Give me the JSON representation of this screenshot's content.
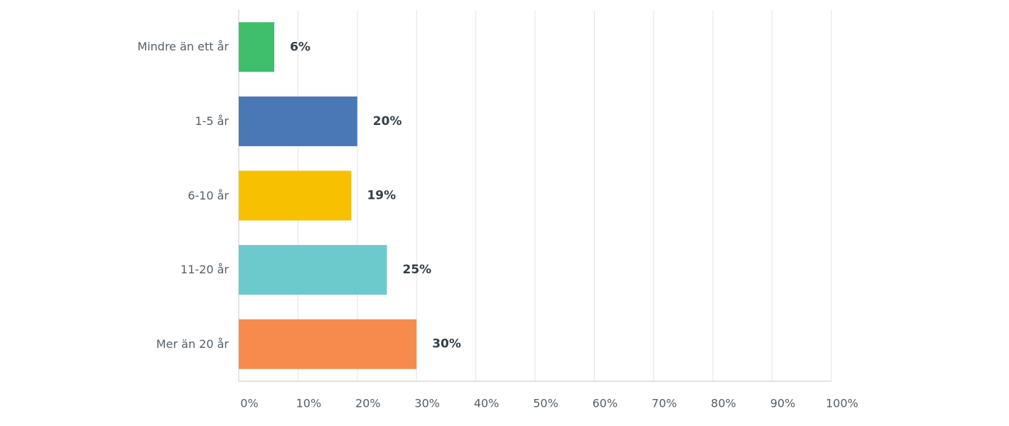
{
  "chart_data": {
    "type": "hbar",
    "categories": [
      "Mindre än ett år",
      "1-5 år",
      "6-10 år",
      "11-20 år",
      "Mer än 20 år"
    ],
    "values": [
      6,
      20,
      19,
      25,
      30
    ],
    "value_labels": [
      "6%",
      "20%",
      "19%",
      "25%",
      "30%"
    ],
    "colors": [
      "#3fbf6b",
      "#4a78b5",
      "#f7c000",
      "#6cc9cc",
      "#f68b4e"
    ],
    "xlim": [
      0,
      100
    ],
    "xticks": [
      {
        "value": 0,
        "label": "0%"
      },
      {
        "value": 10,
        "label": "10%"
      },
      {
        "value": 20,
        "label": "20%"
      },
      {
        "value": 30,
        "label": "30%"
      },
      {
        "value": 40,
        "label": "40%"
      },
      {
        "value": 50,
        "label": "50%"
      },
      {
        "value": 60,
        "label": "60%"
      },
      {
        "value": 70,
        "label": "70%"
      },
      {
        "value": 80,
        "label": "80%"
      },
      {
        "value": 90,
        "label": "90%"
      },
      {
        "value": 100,
        "label": "100%"
      }
    ],
    "grid": true
  }
}
